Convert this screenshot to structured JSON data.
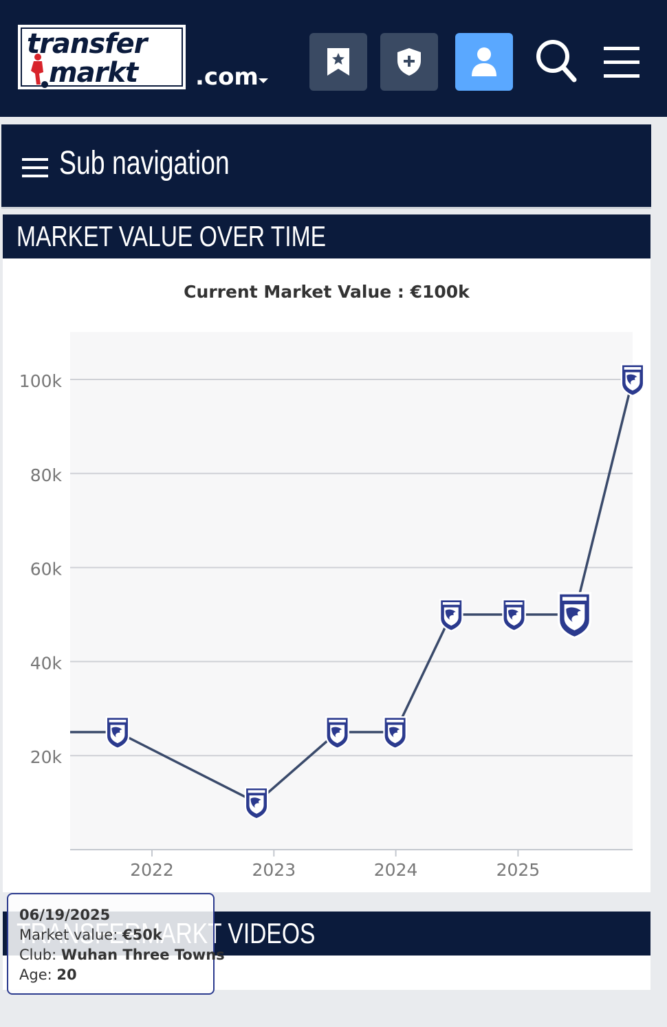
{
  "header": {
    "logo_line1": "transfer",
    "logo_line2": "markt",
    "domain_suffix": ".com",
    "buttons": [
      {
        "name": "bookmark-star-icon"
      },
      {
        "name": "shield-plus-icon"
      },
      {
        "name": "user-icon"
      },
      {
        "name": "search-icon"
      },
      {
        "name": "hamburger-menu-icon"
      }
    ],
    "colors": {
      "bar": "#0b1b3c",
      "button_dark": "#3a4a63",
      "button_accent": "#5aa8ff"
    }
  },
  "subnav": {
    "label": "Sub navigation",
    "icon": "hamburger-icon"
  },
  "market_value": {
    "section_title": "MARKET VALUE OVER TIME",
    "current_value_label": "Current Market Value : €100k"
  },
  "chart_data": {
    "type": "line",
    "x_label": "",
    "y_label": "",
    "x_ticks": [
      "2022",
      "2023",
      "2024",
      "2025"
    ],
    "y_ticks": [
      "20k",
      "40k",
      "60k",
      "80k",
      "100k"
    ],
    "ylim": [
      0,
      110000
    ],
    "xlim": [
      "2021-05-01",
      "2025-12-10"
    ],
    "grid": true,
    "line_color": "#3a4a6b",
    "marker": "club-crest-icon",
    "points": [
      {
        "date": "2021-05-01",
        "value": 25000,
        "marker": false
      },
      {
        "date": "2021-09-20",
        "value": 25000,
        "marker": true
      },
      {
        "date": "2022-11-10",
        "value": 10000,
        "marker": true
      },
      {
        "date": "2023-07-10",
        "value": 25000,
        "marker": true
      },
      {
        "date": "2023-12-30",
        "value": 25000,
        "marker": true
      },
      {
        "date": "2024-06-15",
        "value": 50000,
        "marker": true
      },
      {
        "date": "2024-12-20",
        "value": 50000,
        "marker": true
      },
      {
        "date": "2025-06-19",
        "value": 50000,
        "marker": true
      },
      {
        "date": "2025-12-10",
        "value": 100000,
        "marker": true
      }
    ]
  },
  "videos": {
    "section_title": "TRANSFERMARKT VIDEOS"
  },
  "tooltip": {
    "date": "06/19/2025",
    "market_value_label": "Market value:",
    "market_value": "€50k",
    "club_label": "Club:",
    "club": "Wuhan Three Towns",
    "age_label": "Age:",
    "age": "20"
  }
}
